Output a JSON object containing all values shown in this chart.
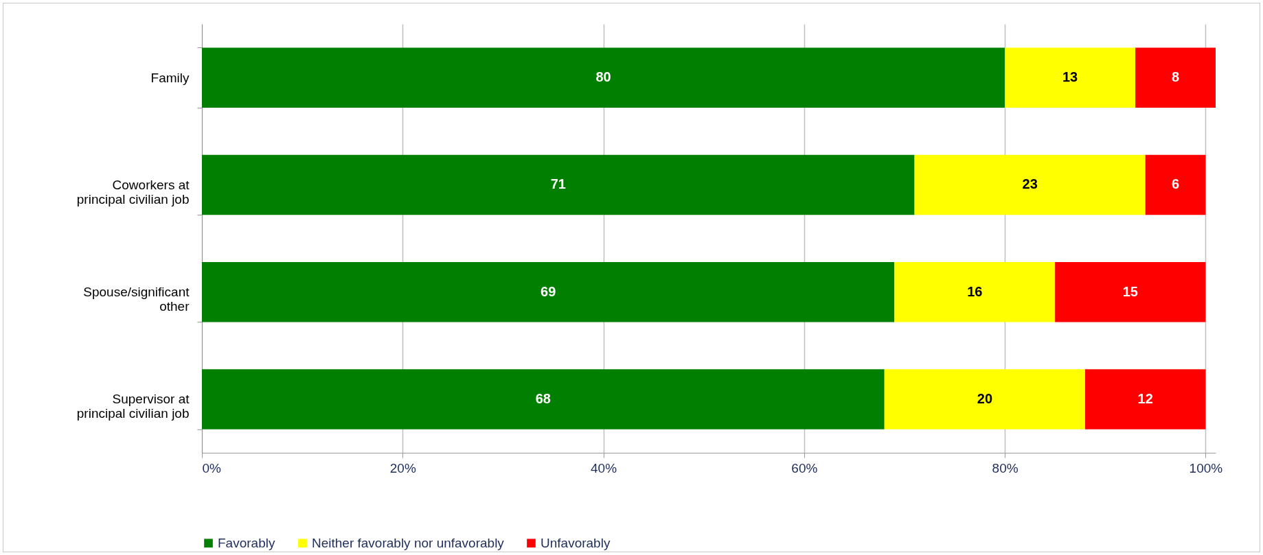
{
  "chart_data": {
    "type": "bar",
    "orientation": "horizontal",
    "stacked": true,
    "data_labels": true,
    "categories": [
      "Family",
      "Coworkers at principal civilian job",
      "Spouse/significant other",
      "Supervisor at principal civilian job"
    ],
    "series": [
      {
        "name": "Favorably",
        "color": "#007f00",
        "values": [
          80,
          71,
          69,
          68
        ]
      },
      {
        "name": "Neither favorably nor unfavorably",
        "color": "#ffff00",
        "values": [
          13,
          23,
          16,
          20
        ]
      },
      {
        "name": "Unfavorably",
        "color": "#ff0000",
        "values": [
          8,
          6,
          15,
          12
        ]
      }
    ],
    "xlim": [
      0,
      101
    ],
    "xticks": [
      {
        "value": 0,
        "label": "0%"
      },
      {
        "value": 20,
        "label": "20%"
      },
      {
        "value": 40,
        "label": "40%"
      },
      {
        "value": 60,
        "label": "60%"
      },
      {
        "value": 80,
        "label": "80%"
      },
      {
        "value": 100,
        "label": "100%"
      }
    ],
    "grid": "x",
    "legend": "bottom"
  }
}
